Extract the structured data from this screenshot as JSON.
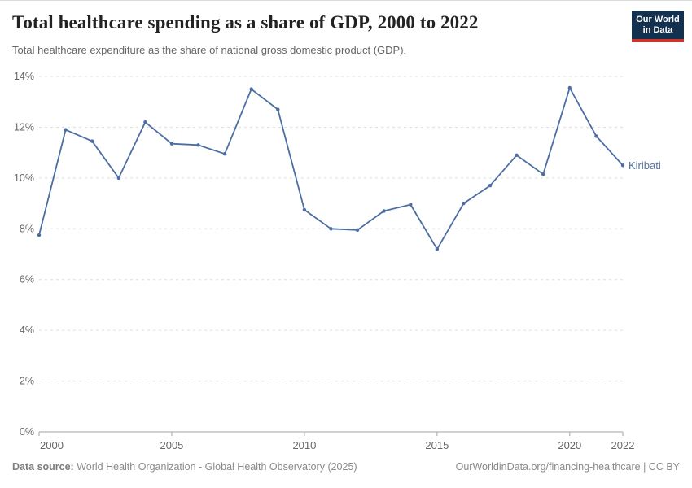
{
  "header": {
    "title": "Total healthcare spending as a share of GDP, 2000 to 2022",
    "subtitle": "Total healthcare expenditure as the share of national gross domestic product (GDP).",
    "logo": {
      "line1": "Our World",
      "line2": "in Data"
    }
  },
  "chart_data": {
    "type": "line",
    "title": "Total healthcare spending as a share of GDP, 2000 to 2022",
    "x": [
      2000,
      2001,
      2002,
      2003,
      2004,
      2005,
      2006,
      2007,
      2008,
      2009,
      2010,
      2011,
      2012,
      2013,
      2014,
      2015,
      2016,
      2017,
      2018,
      2019,
      2020,
      2021,
      2022
    ],
    "series": [
      {
        "name": "Kiribati",
        "values": [
          7.75,
          11.9,
          11.45,
          10.0,
          12.2,
          11.35,
          11.3,
          10.95,
          13.5,
          12.7,
          8.75,
          8.0,
          7.95,
          8.7,
          8.95,
          7.2,
          9.0,
          9.7,
          10.9,
          10.15,
          13.55,
          11.65,
          10.5
        ],
        "end_label": "Kiribati"
      }
    ],
    "xlabel": "",
    "ylabel": "",
    "xlim": [
      2000,
      2022
    ],
    "ylim": [
      0,
      14
    ],
    "x_tick_years": [
      2000,
      2005,
      2010,
      2015,
      2020,
      2022
    ],
    "y_tick_step": 2,
    "y_tick_suffix": "%",
    "grid": "horizontal-dashed",
    "legend_position": "end-of-line-label"
  },
  "footer": {
    "source_label": "Data source:",
    "source_text": " World Health Organization - Global Health Observatory (2025)",
    "link_text": "OurWorldinData.org/financing-healthcare | CC BY"
  },
  "colors": {
    "line": "#4C6EA3",
    "end_label": "#56749F",
    "grid": "#dddddd",
    "axis": "#a3a3a3",
    "tick_label": "#666666",
    "title": "#222222",
    "subtitle": "#666666",
    "footer_text": "#8a8a8a",
    "logo_bg": "#14304f",
    "logo_stripe": "#d0342c"
  }
}
